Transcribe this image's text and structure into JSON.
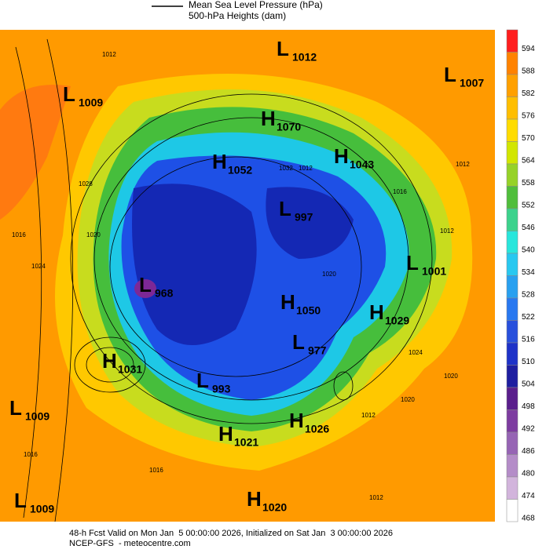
{
  "legend": {
    "mslp": "Mean Sea Level Pressure (hPa)",
    "heights": "500-hPa Heights (dam)"
  },
  "colorbar": {
    "levels": [
      "594",
      "588",
      "582",
      "576",
      "570",
      "564",
      "558",
      "552",
      "546",
      "540",
      "534",
      "528",
      "522",
      "516",
      "510",
      "504",
      "498",
      "492",
      "486",
      "480",
      "474",
      "468"
    ]
  },
  "centers": [
    {
      "type": "L",
      "value": "1012"
    },
    {
      "type": "L",
      "value": "1007"
    },
    {
      "type": "L",
      "value": "1009"
    },
    {
      "type": "H",
      "value": "1070"
    },
    {
      "type": "H",
      "value": "1052"
    },
    {
      "type": "H",
      "value": "1043"
    },
    {
      "type": "L",
      "value": "997"
    },
    {
      "type": "L",
      "value": "1001"
    },
    {
      "type": "L",
      "value": "968"
    },
    {
      "type": "H",
      "value": "1050"
    },
    {
      "type": "H",
      "value": "1029"
    },
    {
      "type": "L",
      "value": "977"
    },
    {
      "type": "H",
      "value": "1031"
    },
    {
      "type": "L",
      "value": "993"
    },
    {
      "type": "L",
      "value": "1009"
    },
    {
      "type": "H",
      "value": "1026"
    },
    {
      "type": "H",
      "value": "1021"
    },
    {
      "type": "L",
      "value": "1009"
    },
    {
      "type": "H",
      "value": "1020"
    }
  ],
  "isobar_labels": [
    "1012",
    "1012",
    "1016",
    "1020",
    "1012",
    "1016",
    "1024",
    "1028",
    "1020",
    "1024",
    "1016",
    "1012",
    "1016",
    "1012",
    "1012",
    "1020",
    "1020",
    "1032"
  ],
  "footer": {
    "valid": "48-h Fcst Valid on Mon Jan  5 00:00:00 2026, Initialized on Sat Jan  3 00:00:00 2026",
    "source": "NCEP-GFS  - meteocentre.com"
  }
}
